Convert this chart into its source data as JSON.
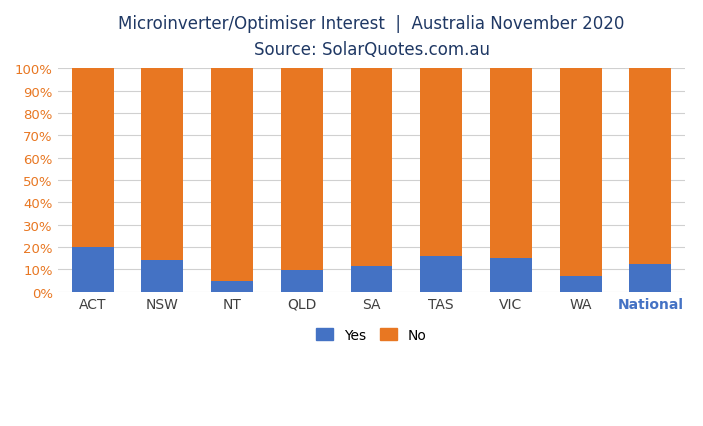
{
  "categories": [
    "ACT",
    "NSW",
    "NT",
    "QLD",
    "SA",
    "TAS",
    "VIC",
    "WA",
    "National"
  ],
  "yes_values": [
    20,
    14,
    5,
    9.5,
    11.5,
    16,
    15,
    7,
    12.5
  ],
  "no_values": [
    80,
    86,
    95,
    90.5,
    88.5,
    84,
    85,
    93,
    87.5
  ],
  "yes_color": "#4472C4",
  "no_color": "#E87722",
  "title_line1": "Microinverter/Optimiser Interest  |  Australia November 2020",
  "title_line2": "Source: SolarQuotes.com.au",
  "title_color": "#1F3864",
  "xtick_color": "#404040",
  "national_color": "#4472C4",
  "ytick_color": "#E87722",
  "ylabel_ticks": [
    "0%",
    "10%",
    "20%",
    "30%",
    "40%",
    "50%",
    "60%",
    "70%",
    "80%",
    "90%",
    "100%"
  ],
  "background_color": "#FFFFFF",
  "grid_color": "#D0D0D0",
  "legend_yes": "Yes",
  "legend_no": "No",
  "bar_width": 0.6
}
